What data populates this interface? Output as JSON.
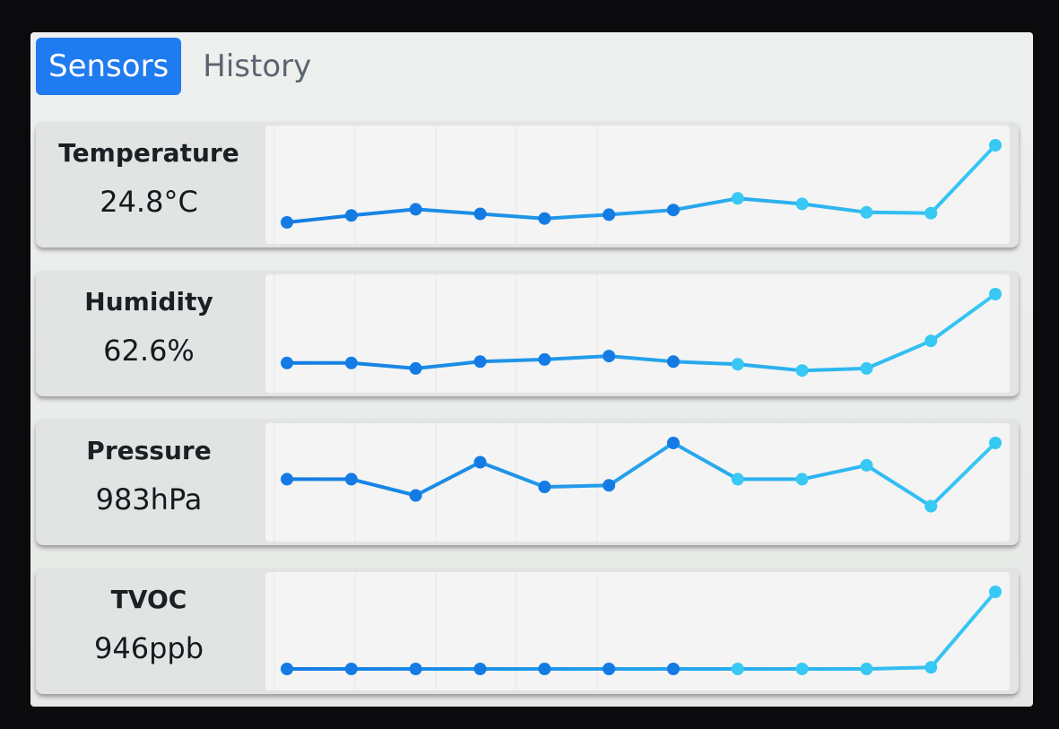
{
  "tabs": [
    {
      "label": "Sensors",
      "active": true
    },
    {
      "label": "History",
      "active": false
    }
  ],
  "colors": {
    "accent": "#1f7bf0",
    "line_start": "#137be3",
    "line_end": "#37c8f4"
  },
  "sensors": [
    {
      "label": "Temperature",
      "value": "24.8°C"
    },
    {
      "label": "Humidity",
      "value": "62.6%"
    },
    {
      "label": "Pressure",
      "value": "983hPa"
    },
    {
      "label": "TVOC",
      "value": "946ppb"
    }
  ],
  "chart_data": [
    {
      "type": "line",
      "values": [
        0,
        9,
        17,
        11,
        5,
        10,
        16,
        31,
        24,
        13,
        12,
        100
      ],
      "ylim": [
        0,
        100
      ],
      "grid": true
    },
    {
      "type": "line",
      "values": [
        0,
        0,
        -8,
        2,
        5,
        10,
        2,
        -2,
        -11,
        -8,
        32,
        100
      ],
      "ylim": [
        -12,
        100
      ],
      "grid": true
    },
    {
      "type": "line",
      "values": [
        53,
        53,
        32,
        75,
        43,
        45,
        100,
        53,
        53,
        71,
        18,
        100
      ],
      "ylim": [
        0,
        100
      ],
      "grid": true
    },
    {
      "type": "line",
      "values": [
        0,
        0,
        0,
        0,
        0,
        0,
        0,
        0,
        0,
        0,
        2,
        100
      ],
      "ylim": [
        0,
        100
      ],
      "grid": true
    }
  ]
}
